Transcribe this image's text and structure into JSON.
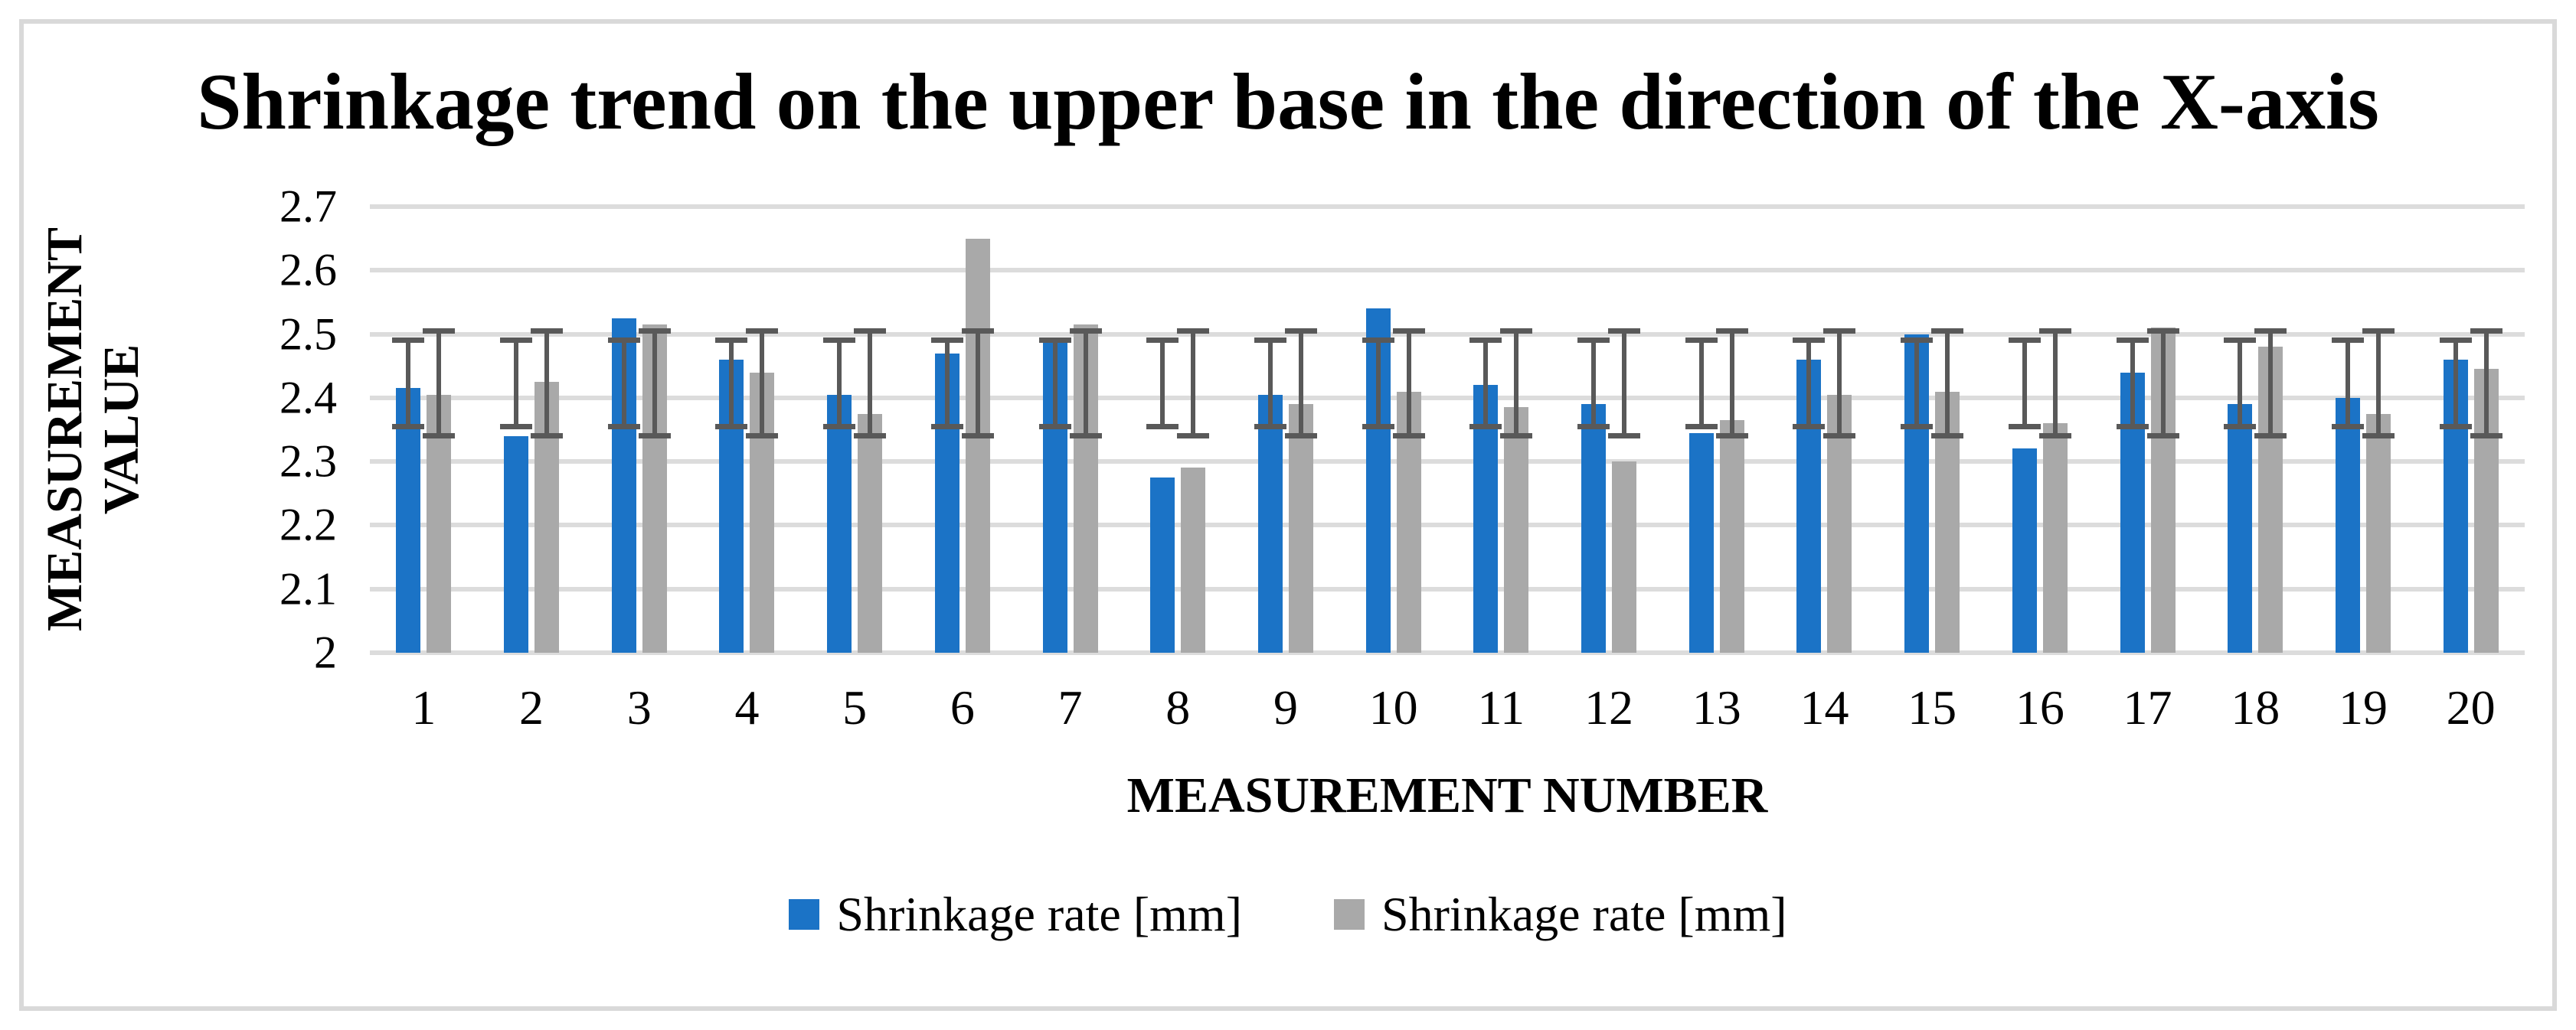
{
  "figure": {
    "background_color": "#ffffff",
    "border_color": "#d9d9d9",
    "gridline_color": "#dcdcdc"
  },
  "chart_data": {
    "type": "bar",
    "title": "Shrinkage trend on the upper base in the direction of the X-axis",
    "xlabel": "MEASUREMENT NUMBER",
    "ylabel": "MEASUREMENT VALUE",
    "ylabel_lines": [
      "MEASUREMENT",
      "VALUE"
    ],
    "categories": [
      "1",
      "2",
      "3",
      "4",
      "5",
      "6",
      "7",
      "8",
      "9",
      "10",
      "11",
      "12",
      "13",
      "14",
      "15",
      "16",
      "17",
      "18",
      "19",
      "20"
    ],
    "series": [
      {
        "name": "Shrinkage rate [mm]",
        "color": "#1b73c6",
        "values": [
          2.415,
          2.34,
          2.525,
          2.46,
          2.405,
          2.47,
          2.49,
          2.275,
          2.405,
          2.54,
          2.42,
          2.39,
          2.345,
          2.46,
          2.5,
          2.32,
          2.44,
          2.39,
          2.4,
          2.46
        ],
        "error_bar": {
          "low": 2.355,
          "high": 2.49
        }
      },
      {
        "name": "Shrinkage rate [mm]",
        "color": "#a9a9a9",
        "values": [
          2.405,
          2.425,
          2.515,
          2.44,
          2.375,
          2.65,
          2.515,
          2.29,
          2.39,
          2.41,
          2.385,
          2.3,
          2.365,
          2.405,
          2.41,
          2.36,
          2.51,
          2.48,
          2.375,
          2.445
        ],
        "error_bar": {
          "low": 2.34,
          "high": 2.505
        }
      }
    ],
    "error_bar_color": "#595959",
    "y_axis": {
      "min": 2,
      "max": 2.7,
      "step": 0.1,
      "tick_labels": [
        "2.7",
        "2.6",
        "2.5",
        "2.4",
        "2.3",
        "2.2",
        "2.1",
        "2"
      ]
    },
    "grid": true,
    "legend_position": "bottom"
  }
}
